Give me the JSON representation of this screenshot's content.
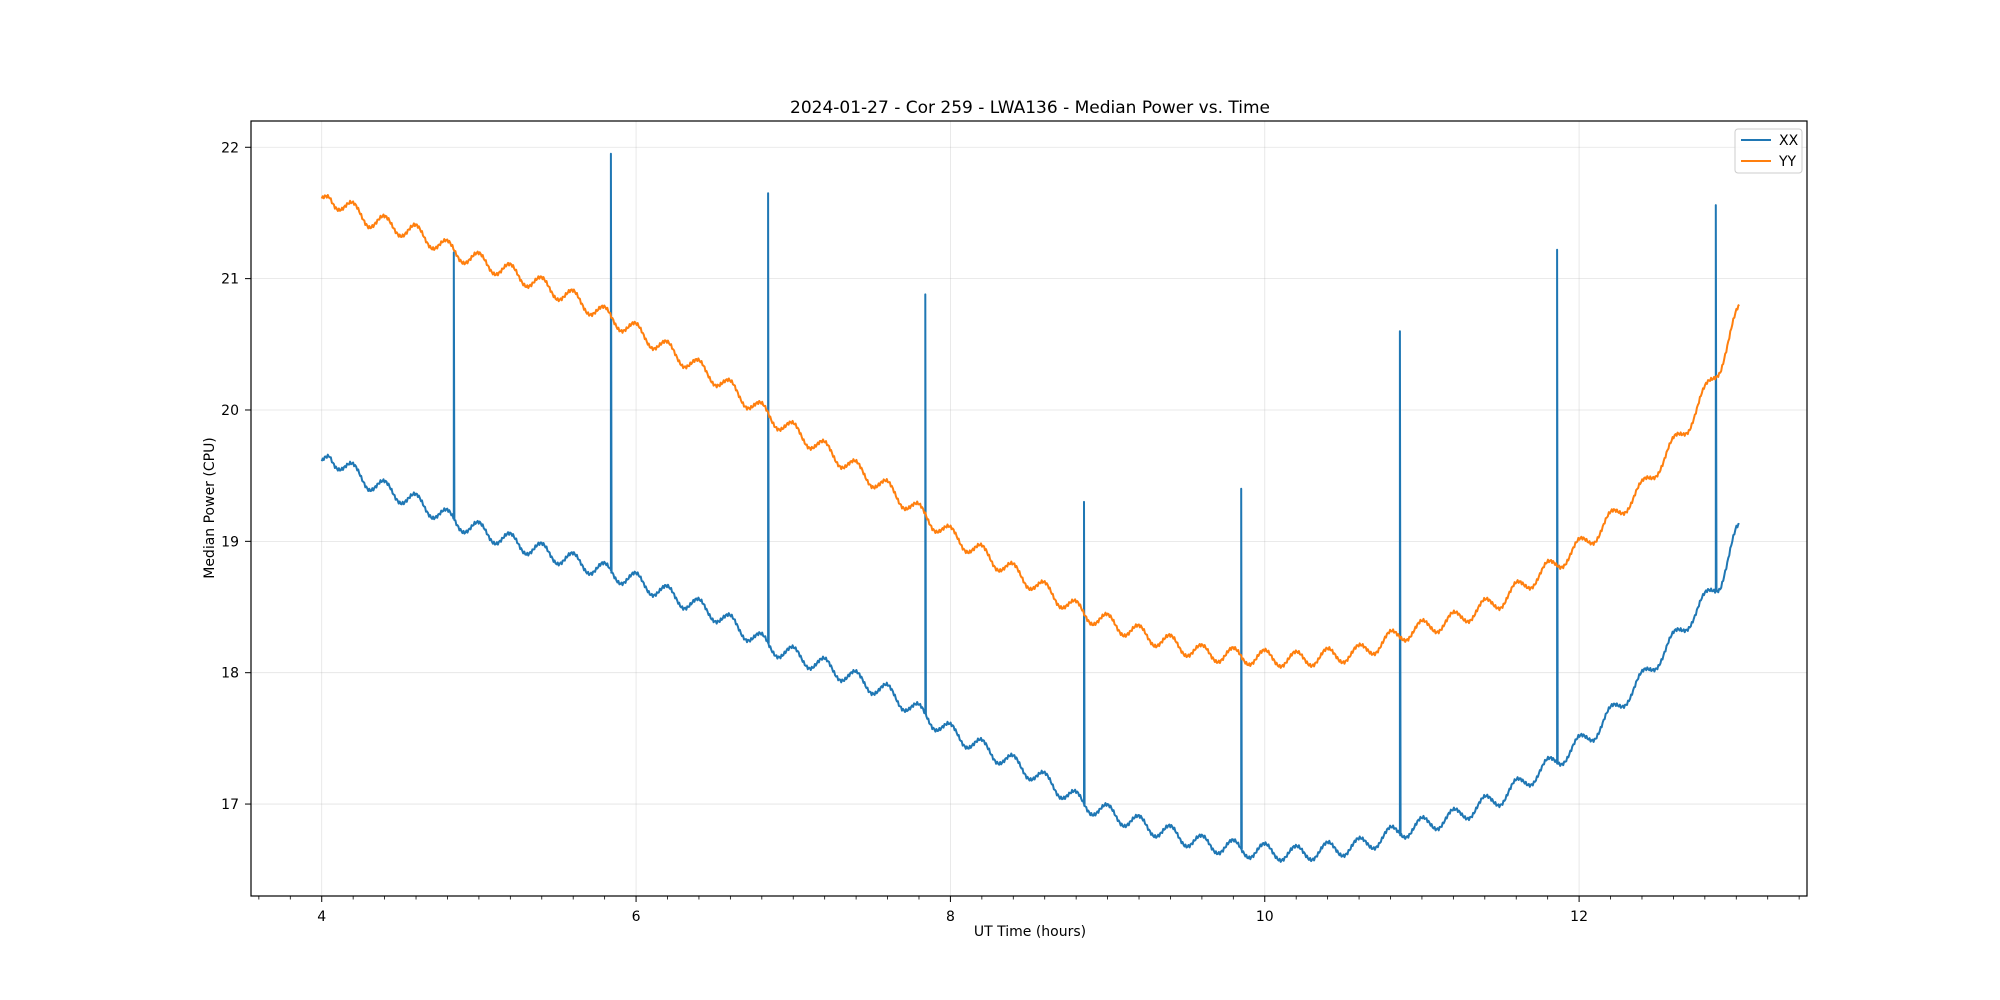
{
  "chart_data": {
    "type": "line",
    "title": "2024-01-27 - Cor 259 - LWA136 - Median Power vs. Time",
    "xlabel": "UT Time (hours)",
    "ylabel": "Median Power (CPU)",
    "xlim": [
      3.55,
      13.45
    ],
    "ylim": [
      16.3,
      22.2
    ],
    "xticks": [
      4,
      6,
      8,
      10,
      12
    ],
    "xtick_labels": [
      "4",
      "6",
      "8",
      "10",
      "12"
    ],
    "yticks": [
      17,
      18,
      19,
      20,
      21,
      22
    ],
    "ytick_labels": [
      "17",
      "18",
      "19",
      "20",
      "21",
      "22"
    ],
    "x_minor_step": 0.2,
    "grid": true,
    "legend_position": "top-right",
    "ripple_period_hours": 0.2,
    "series": [
      {
        "name": "XX",
        "color": "#1f77b4",
        "ripple_amplitude": 0.06,
        "x": [
          4.0,
          4.05,
          4.3,
          4.6,
          4.85,
          5.2,
          5.6,
          6.0,
          6.5,
          6.85,
          7.2,
          7.6,
          8.0,
          8.5,
          8.85,
          9.2,
          9.6,
          9.9,
          10.2,
          10.6,
          10.88,
          11.2,
          11.5,
          11.88,
          12.1,
          12.4,
          12.7,
          12.9,
          13.0,
          13.02
        ],
        "y": [
          19.55,
          19.65,
          19.45,
          19.3,
          19.15,
          19.0,
          18.85,
          18.7,
          18.45,
          18.2,
          18.05,
          17.85,
          17.55,
          17.25,
          17.0,
          16.85,
          16.7,
          16.65,
          16.62,
          16.68,
          16.8,
          16.9,
          17.05,
          17.35,
          17.55,
          17.95,
          18.4,
          18.7,
          19.05,
          19.08
        ],
        "spikes": [
          {
            "x": 4.84,
            "y": 21.2
          },
          {
            "x": 5.84,
            "y": 21.95
          },
          {
            "x": 6.84,
            "y": 21.65
          },
          {
            "x": 7.84,
            "y": 20.88
          },
          {
            "x": 8.85,
            "y": 19.3
          },
          {
            "x": 9.85,
            "y": 19.4
          },
          {
            "x": 10.86,
            "y": 20.6
          },
          {
            "x": 11.86,
            "y": 21.22
          },
          {
            "x": 12.87,
            "y": 21.56
          }
        ]
      },
      {
        "name": "YY",
        "color": "#ff7f0e",
        "ripple_amplitude": 0.06,
        "x": [
          4.0,
          4.05,
          4.3,
          4.6,
          4.85,
          5.2,
          5.6,
          6.0,
          6.5,
          6.85,
          7.2,
          7.6,
          8.0,
          8.5,
          8.85,
          9.2,
          9.6,
          9.9,
          10.2,
          10.6,
          10.88,
          11.2,
          11.5,
          11.88,
          12.1,
          12.4,
          12.7,
          12.9,
          13.0,
          13.02
        ],
        "y": [
          21.55,
          21.62,
          21.45,
          21.35,
          21.2,
          21.05,
          20.85,
          20.6,
          20.25,
          19.95,
          19.7,
          19.4,
          19.05,
          18.7,
          18.45,
          18.3,
          18.15,
          18.12,
          18.1,
          18.15,
          18.3,
          18.4,
          18.55,
          18.85,
          19.05,
          19.4,
          19.9,
          20.35,
          20.7,
          20.75
        ],
        "spikes": []
      }
    ]
  }
}
